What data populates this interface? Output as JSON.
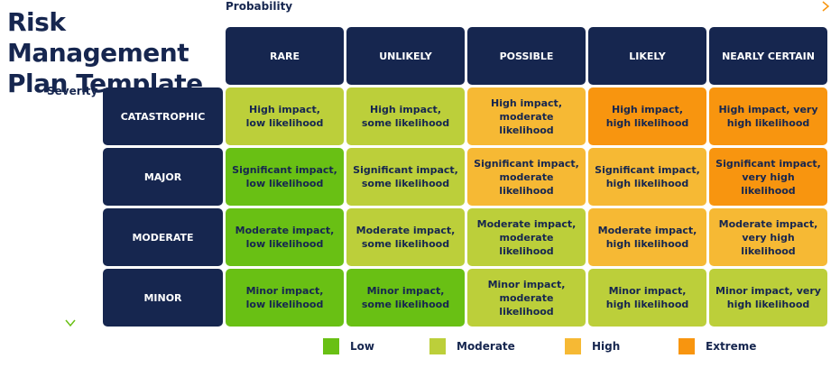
{
  "title": {
    "line1": "Risk Management",
    "line2": "Plan Template"
  },
  "axes": {
    "probability_label": "Probability",
    "severity_label": "Severity"
  },
  "columns": [
    "RARE",
    "UNLIKELY",
    "POSSIBLE",
    "LIKELY",
    "NEARLY CERTAIN"
  ],
  "rows": [
    {
      "label": "CATASTROPHIC",
      "cells": [
        {
          "line1": "High impact,",
          "line2": "low likelihood",
          "level": "moderate"
        },
        {
          "line1": "High impact,",
          "line2": "some likelihood",
          "level": "moderate"
        },
        {
          "line1": "High impact,",
          "line2": "moderate likelihood",
          "level": "high"
        },
        {
          "line1": "High impact,",
          "line2": "high likelihood",
          "level": "extreme"
        },
        {
          "line1": "High impact, very",
          "line2": "high likelihood",
          "level": "extreme"
        }
      ]
    },
    {
      "label": "MAJOR",
      "cells": [
        {
          "line1": "Significant impact,",
          "line2": "low likelihood",
          "level": "low"
        },
        {
          "line1": "Significant impact,",
          "line2": "some likelihood",
          "level": "moderate"
        },
        {
          "line1": "Significant impact,",
          "line2": "moderate likelihood",
          "level": "high"
        },
        {
          "line1": "Significant impact,",
          "line2": "high likelihood",
          "level": "high"
        },
        {
          "line1": "Significant impact,",
          "line2": "very high likelihood",
          "level": "extreme"
        }
      ]
    },
    {
      "label": "MODERATE",
      "cells": [
        {
          "line1": "Moderate impact,",
          "line2": "low likelihood",
          "level": "low"
        },
        {
          "line1": "Moderate impact,",
          "line2": "some likelihood",
          "level": "moderate"
        },
        {
          "line1": "Moderate impact,",
          "line2": "moderate likelihood",
          "level": "moderate"
        },
        {
          "line1": "Moderate impact,",
          "line2": "high likelihood",
          "level": "high"
        },
        {
          "line1": "Moderate impact,",
          "line2": "very high likelihood",
          "level": "high"
        }
      ]
    },
    {
      "label": "MINOR",
      "cells": [
        {
          "line1": "Minor impact,",
          "line2": "low likelihood",
          "level": "low"
        },
        {
          "line1": "Minor impact,",
          "line2": "some likelihood",
          "level": "low"
        },
        {
          "line1": "Minor impact,",
          "line2": "moderate likelihood",
          "level": "moderate"
        },
        {
          "line1": "Minor impact,",
          "line2": "high likelihood",
          "level": "moderate"
        },
        {
          "line1": "Minor impact, very",
          "line2": "high likelihood",
          "level": "moderate"
        }
      ]
    }
  ],
  "legend": [
    {
      "label": "Low",
      "color": "#69c014"
    },
    {
      "label": "Moderate",
      "color": "#bccf3a"
    },
    {
      "label": "High",
      "color": "#f6b934"
    },
    {
      "label": "Extreme",
      "color": "#f8950f"
    }
  ],
  "colors": {
    "navy": "#16264f",
    "arrow_gradient_start": "#69c014",
    "arrow_gradient_end": "#f8950f"
  }
}
